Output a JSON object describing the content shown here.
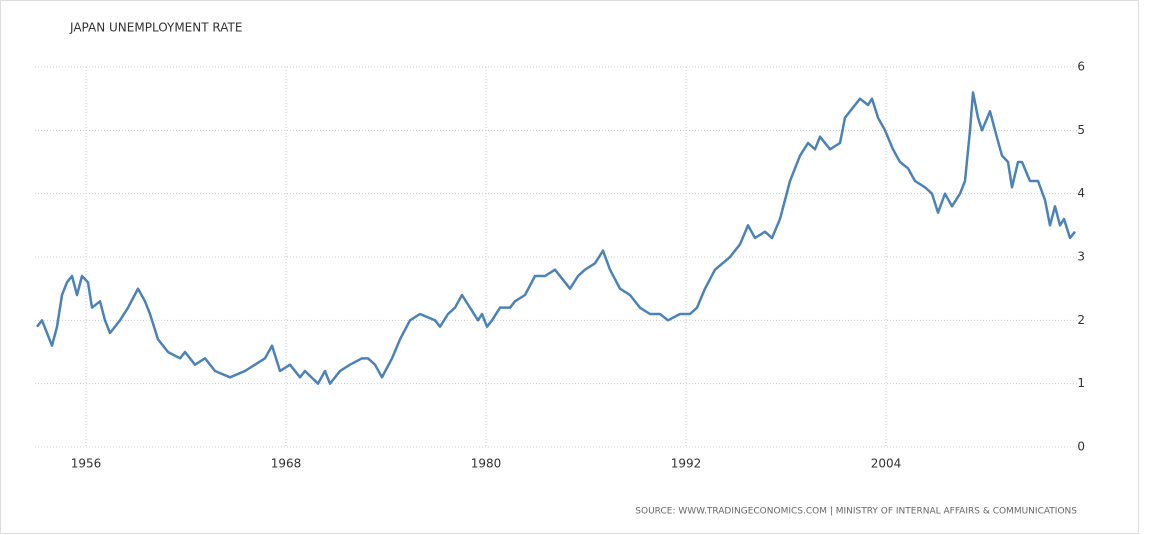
{
  "chart_data": {
    "type": "line",
    "title": "JAPAN UNEMPLOYMENT RATE",
    "source": "SOURCE: WWW.TRADINGECONOMICS.COM | MINISTRY OF INTERNAL AFFAIRS & COMMUNICATIONS",
    "grid": true,
    "xlim": [
      1952.94,
      2015.52
    ],
    "xticks": [
      1956,
      1968,
      1980,
      1992,
      2004
    ],
    "ylim": [
      0,
      6
    ],
    "yticks": [
      0,
      1,
      2,
      3,
      4,
      5,
      6
    ],
    "series": [
      {
        "name": "Unemployment rate",
        "color": "#4a82b9",
        "x": [
          1953.06,
          1953.36,
          1953.66,
          1953.96,
          1954.26,
          1954.56,
          1954.86,
          1955.16,
          1955.46,
          1955.76,
          1956.12,
          1956.36,
          1956.84,
          1957.14,
          1957.44,
          1958.04,
          1958.52,
          1959.12,
          1959.54,
          1959.84,
          1960.32,
          1960.92,
          1961.64,
          1961.94,
          1962.54,
          1963.14,
          1963.74,
          1964.64,
          1965.54,
          1966.14,
          1966.74,
          1967.16,
          1967.64,
          1968.24,
          1968.84,
          1969.14,
          1969.92,
          1970.34,
          1970.64,
          1971.24,
          1971.84,
          1972.56,
          1972.92,
          1973.34,
          1973.76,
          1974.36,
          1974.84,
          1975.44,
          1976.04,
          1976.94,
          1977.24,
          1977.72,
          1978.14,
          1978.56,
          1979.04,
          1979.52,
          1979.76,
          1980.06,
          1980.36,
          1980.84,
          1981.44,
          1981.74,
          1982.34,
          1982.94,
          1983.54,
          1984.14,
          1984.74,
          1985.04,
          1985.52,
          1985.94,
          1986.54,
          1987.02,
          1987.44,
          1988.04,
          1988.64,
          1989.24,
          1989.84,
          1990.44,
          1990.92,
          1991.64,
          1992.24,
          1992.66,
          1993.14,
          1993.74,
          1994.64,
          1995.24,
          1995.72,
          1996.14,
          1996.74,
          1997.16,
          1997.64,
          1998.24,
          1998.84,
          1999.32,
          1999.74,
          2000.04,
          2000.64,
          2001.24,
          2001.54,
          2002.14,
          2002.44,
          2002.92,
          2003.16,
          2003.52,
          2003.94,
          2004.42,
          2004.84,
          2005.32,
          2005.74,
          2006.34,
          2006.76,
          2007.12,
          2007.54,
          2007.96,
          2008.44,
          2008.74,
          2009.04,
          2009.22,
          2009.52,
          2009.76,
          2010.24,
          2010.54,
          2010.96,
          2011.32,
          2011.56,
          2011.92,
          2012.16,
          2012.64,
          2013.12,
          2013.54,
          2013.84,
          2014.14,
          2014.44,
          2014.68,
          2015.04,
          2015.34
        ],
        "values": [
          1.9,
          2.0,
          1.8,
          1.6,
          1.9,
          2.4,
          2.6,
          2.7,
          2.4,
          2.7,
          2.6,
          2.2,
          2.3,
          2.0,
          1.8,
          2.0,
          2.2,
          2.5,
          2.3,
          2.1,
          1.7,
          1.5,
          1.4,
          1.5,
          1.3,
          1.4,
          1.2,
          1.1,
          1.2,
          1.3,
          1.4,
          1.6,
          1.2,
          1.3,
          1.1,
          1.2,
          1.0,
          1.2,
          1.0,
          1.2,
          1.3,
          1.4,
          1.4,
          1.3,
          1.1,
          1.4,
          1.7,
          2.0,
          2.1,
          2.0,
          1.9,
          2.1,
          2.2,
          2.4,
          2.2,
          2.0,
          2.1,
          1.9,
          2.0,
          2.2,
          2.2,
          2.3,
          2.4,
          2.7,
          2.7,
          2.8,
          2.6,
          2.5,
          2.7,
          2.8,
          2.9,
          3.1,
          2.8,
          2.5,
          2.4,
          2.2,
          2.1,
          2.1,
          2.0,
          2.1,
          2.1,
          2.2,
          2.5,
          2.8,
          3.0,
          3.2,
          3.5,
          3.3,
          3.4,
          3.3,
          3.6,
          4.2,
          4.6,
          4.8,
          4.7,
          4.9,
          4.7,
          4.8,
          5.2,
          5.4,
          5.5,
          5.4,
          5.5,
          5.2,
          5.0,
          4.7,
          4.5,
          4.4,
          4.2,
          4.1,
          4.0,
          3.7,
          4.0,
          3.8,
          4.0,
          4.2,
          5.0,
          5.6,
          5.2,
          5.0,
          5.3,
          5.0,
          4.6,
          4.5,
          4.1,
          4.5,
          4.5,
          4.2,
          4.2,
          3.9,
          3.5,
          3.8,
          3.5,
          3.6,
          3.3,
          3.4
        ]
      }
    ]
  }
}
